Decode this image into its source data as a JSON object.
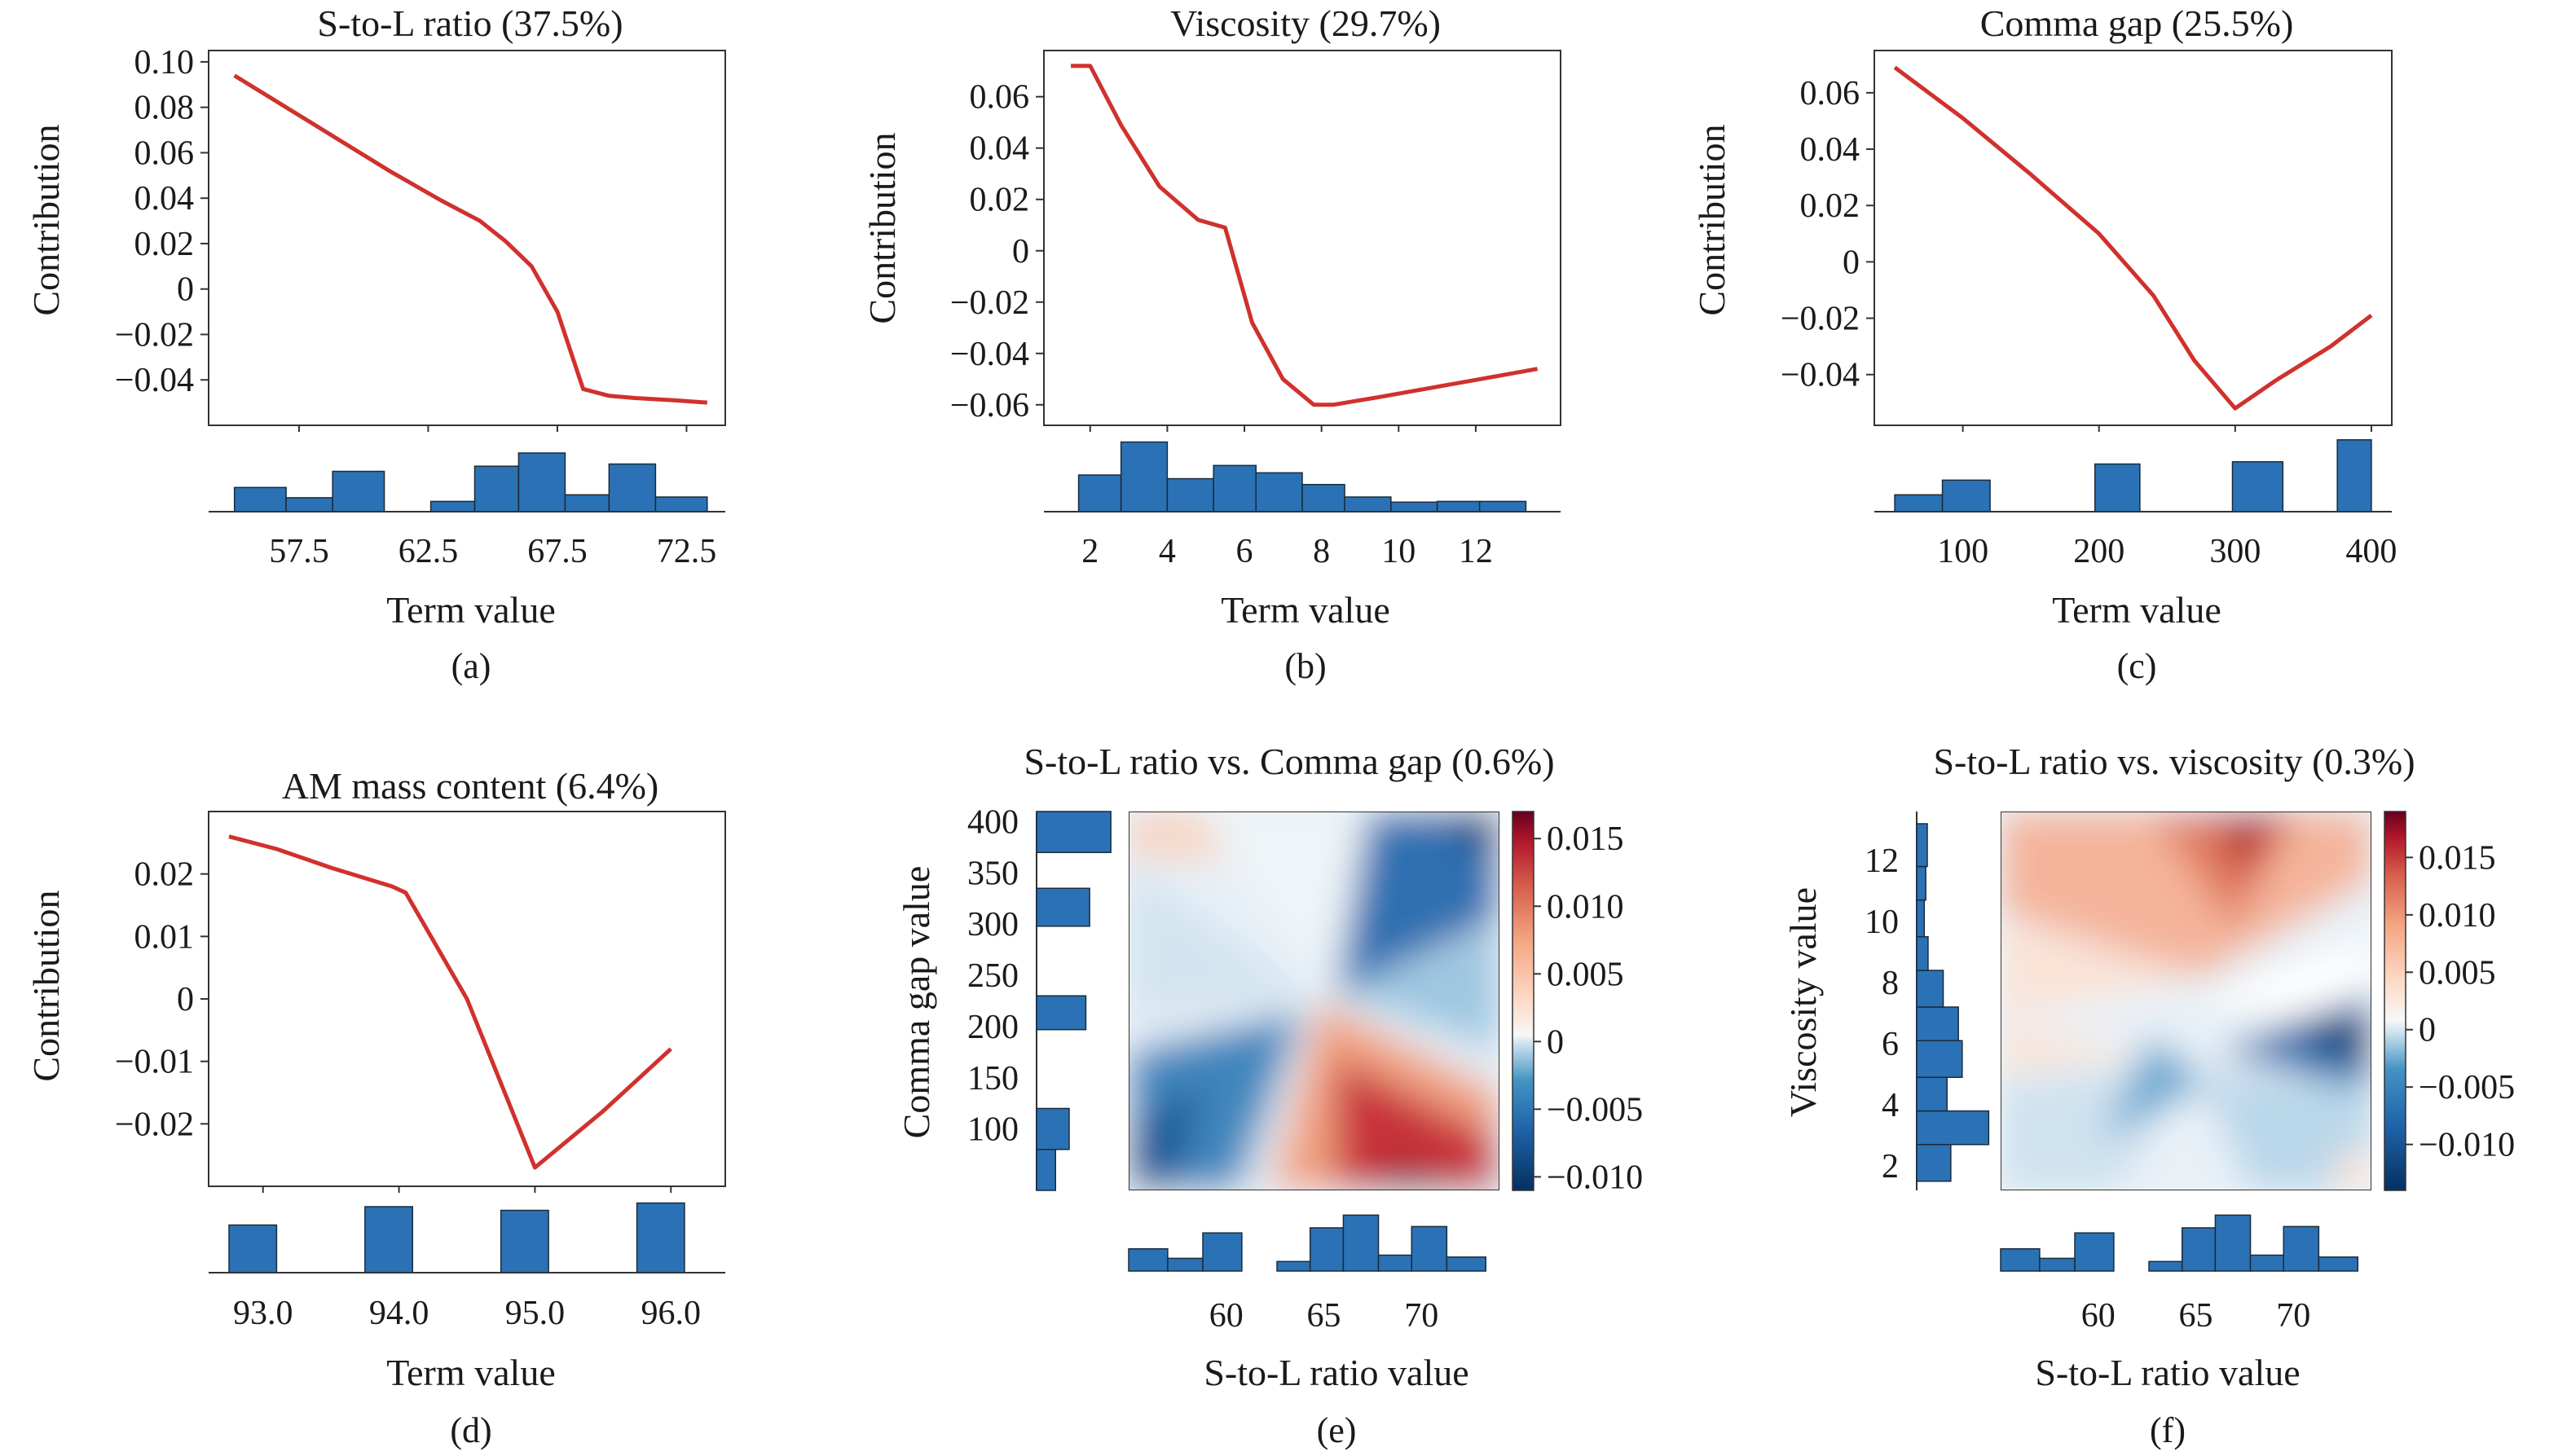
{
  "figure": {
    "panels": [
      {
        "id": "a",
        "caption": "(a)"
      },
      {
        "id": "b",
        "caption": "(b)"
      },
      {
        "id": "c",
        "caption": "(c)"
      },
      {
        "id": "d",
        "caption": "(d)"
      },
      {
        "id": "e",
        "caption": "(e)"
      },
      {
        "id": "f",
        "caption": "(f)"
      }
    ]
  },
  "colors": {
    "line": "#d0312d",
    "bar": "#2a72b5",
    "bar_edge": "#1b2a3a",
    "frame": "#333333"
  },
  "chart_data": [
    {
      "id": "a",
      "type": "line",
      "title": "S-to-L ratio (37.5%)",
      "xlabel": "Term value",
      "ylabel": "Contribution",
      "xlim": [
        54,
        74
      ],
      "ylim": [
        -0.06,
        0.105
      ],
      "xticks": [
        "57.5",
        "62.5",
        "67.5",
        "72.5"
      ],
      "xtick_values": [
        57.5,
        62.5,
        67.5,
        72.5
      ],
      "yticks": [
        "0.10",
        "0.08",
        "0.06",
        "0.04",
        "0.02",
        "0",
        "−0.02",
        "−0.04"
      ],
      "ytick_values": [
        0.1,
        0.08,
        0.06,
        0.04,
        0.02,
        0,
        -0.02,
        -0.04
      ],
      "x": [
        55,
        57,
        59,
        61,
        63,
        64.5,
        65.5,
        66.5,
        67.5,
        68.5,
        69.5,
        70.5,
        72,
        73.3
      ],
      "y": [
        0.094,
        0.08,
        0.066,
        0.052,
        0.039,
        0.03,
        0.021,
        0.01,
        -0.01,
        -0.044,
        -0.047,
        -0.048,
        -0.049,
        -0.05
      ],
      "hist": {
        "edges": [
          55,
          57,
          58.8,
          60.8,
          62.6,
          64.3,
          66,
          67.8,
          69.5,
          71.3,
          73.3
        ],
        "heights": [
          0.33,
          0.19,
          0.55,
          0,
          0.14,
          0.62,
          0.8,
          0.23,
          0.65,
          0.2
        ]
      }
    },
    {
      "id": "b",
      "type": "line",
      "title": "Viscosity (29.7%)",
      "xlabel": "Term value",
      "ylabel": "Contribution",
      "xlim": [
        0.8,
        14.2
      ],
      "ylim": [
        -0.068,
        0.078
      ],
      "xticks": [
        "2",
        "4",
        "6",
        "8",
        "10",
        "12"
      ],
      "xtick_values": [
        2,
        4,
        6,
        8,
        10,
        12
      ],
      "yticks": [
        "0.06",
        "0.04",
        "0.02",
        "0",
        "−0.02",
        "−0.04",
        "−0.06"
      ],
      "ytick_values": [
        0.06,
        0.04,
        0.02,
        0,
        -0.02,
        -0.04,
        -0.06
      ],
      "x": [
        1.5,
        2.0,
        2.8,
        3.8,
        4.8,
        5.5,
        6.2,
        7.0,
        7.8,
        8.3,
        9.5,
        11,
        12.5,
        13.6
      ],
      "y": [
        0.072,
        0.072,
        0.049,
        0.025,
        0.012,
        0.009,
        -0.028,
        -0.05,
        -0.06,
        -0.06,
        -0.057,
        -0.053,
        -0.049,
        -0.046
      ],
      "hist": {
        "edges": [
          1.7,
          2.8,
          4,
          5.2,
          6.3,
          7.5,
          8.6,
          9.8,
          11,
          12.1,
          13.3
        ],
        "heights": [
          0.5,
          0.95,
          0.45,
          0.63,
          0.53,
          0.37,
          0.2,
          0.13,
          0.14,
          0.14
        ]
      }
    },
    {
      "id": "c",
      "type": "line",
      "title": "Comma gap (25.5%)",
      "xlabel": "Term value",
      "ylabel": "Contribution",
      "xlim": [
        35,
        415
      ],
      "ylim": [
        -0.058,
        0.075
      ],
      "xticks": [
        "100",
        "200",
        "300",
        "400"
      ],
      "xtick_values": [
        100,
        200,
        300,
        400
      ],
      "yticks": [
        "0.06",
        "0.04",
        "0.02",
        "0",
        "−0.02",
        "−0.04"
      ],
      "ytick_values": [
        0.06,
        0.04,
        0.02,
        0,
        -0.02,
        -0.04
      ],
      "x": [
        50,
        100,
        150,
        200,
        240,
        270,
        300,
        330,
        370,
        400
      ],
      "y": [
        0.069,
        0.051,
        0.031,
        0.01,
        -0.012,
        -0.035,
        -0.052,
        -0.042,
        -0.03,
        -0.019
      ],
      "hist": {
        "edges": [
          50,
          85,
          120,
          160,
          197,
          230,
          260,
          298,
          335,
          375,
          400
        ],
        "heights": [
          0.23,
          0.43,
          0,
          0,
          0.65,
          0,
          0,
          0.68,
          0,
          0.98
        ]
      }
    },
    {
      "id": "d",
      "type": "line",
      "title": "AM mass content (6.4%)",
      "xlabel": "Term value",
      "ylabel": "Contribution",
      "xlim": [
        92.6,
        96.4
      ],
      "ylim": [
        -0.03,
        0.03
      ],
      "xticks": [
        "93.0",
        "94.0",
        "95.0",
        "96.0"
      ],
      "xtick_values": [
        93.0,
        94.0,
        95.0,
        96.0
      ],
      "yticks": [
        "0.02",
        "0.01",
        "0",
        "−0.01",
        "−0.02"
      ],
      "ytick_values": [
        0.02,
        0.01,
        0,
        -0.01,
        -0.02
      ],
      "x": [
        92.75,
        93.1,
        93.5,
        93.95,
        94.05,
        94.5,
        95.0,
        95.5,
        96.0
      ],
      "y": [
        0.026,
        0.024,
        0.021,
        0.018,
        0.017,
        0.0,
        -0.027,
        -0.018,
        -0.008
      ],
      "hist": {
        "edges": [
          92.75,
          93.1,
          93.4,
          93.75,
          94.1,
          94.4,
          94.75,
          95.1,
          95.4,
          95.75,
          96.1
        ],
        "heights": [
          0.65,
          0,
          0,
          0.9,
          0,
          0,
          0.85,
          0,
          0,
          0.95
        ]
      }
    },
    {
      "id": "e",
      "type": "heatmap",
      "title": "S-to-L ratio vs. Comma gap (0.6%)",
      "xlabel": "S-to-L ratio value",
      "ylabel": "Comma gap value",
      "xlim": [
        55,
        74
      ],
      "ylim": [
        40,
        410
      ],
      "xticks": [
        "60",
        "65",
        "70"
      ],
      "xtick_values": [
        60,
        65,
        70
      ],
      "yticks": [
        "400",
        "350",
        "300",
        "250",
        "200",
        "150",
        "100"
      ],
      "ytick_values": [
        400,
        350,
        300,
        250,
        200,
        150,
        100
      ],
      "colorbar": {
        "min": -0.011,
        "max": 0.017,
        "ticks": [
          "0.015",
          "0.010",
          "0.005",
          "0",
          "−0.005",
          "−0.010"
        ],
        "tick_values": [
          0.015,
          0.01,
          0.005,
          0,
          -0.005,
          -0.01
        ]
      },
      "xhist": {
        "edges": [
          55,
          57,
          58.8,
          60.8,
          62.6,
          64.3,
          66,
          67.8,
          69.5,
          71.3,
          73.3
        ],
        "heights": [
          0.35,
          0.2,
          0.6,
          0,
          0.15,
          0.68,
          0.88,
          0.25,
          0.7,
          0.22
        ]
      },
      "yhist": {
        "edges": [
          40,
          80,
          120,
          160,
          197,
          230,
          260,
          298,
          335,
          370,
          410
        ],
        "heights": [
          0.25,
          0.43,
          0,
          0,
          0.65,
          0,
          0,
          0.7,
          0,
          0.98
        ]
      }
    },
    {
      "id": "f",
      "type": "heatmap",
      "title": "S-to-L ratio vs. viscosity (0.3%)",
      "xlabel": "S-to-L ratio value",
      "ylabel": "Viscosity value",
      "xlim": [
        55,
        74
      ],
      "ylim": [
        1.2,
        13.6
      ],
      "xticks": [
        "60",
        "65",
        "70"
      ],
      "xtick_values": [
        60,
        65,
        70
      ],
      "yticks": [
        "12",
        "10",
        "8",
        "6",
        "4",
        "2"
      ],
      "ytick_values": [
        12,
        10,
        8,
        6,
        4,
        2
      ],
      "colorbar": {
        "min": -0.014,
        "max": 0.019,
        "ticks": [
          "0.015",
          "0.010",
          "0.005",
          "0",
          "−0.005",
          "−0.010"
        ],
        "tick_values": [
          0.015,
          0.01,
          0.005,
          0,
          -0.005,
          -0.01
        ]
      },
      "xhist": {
        "edges": [
          55,
          57,
          58.8,
          60.8,
          62.6,
          64.3,
          66,
          67.8,
          69.5,
          71.3,
          73.3
        ],
        "heights": [
          0.35,
          0.2,
          0.6,
          0,
          0.15,
          0.68,
          0.88,
          0.25,
          0.7,
          0.22
        ]
      },
      "yhist": {
        "edges": [
          1.5,
          2.7,
          3.8,
          4.9,
          6.1,
          7.2,
          8.4,
          9.5,
          10.7,
          11.8,
          13.2
        ],
        "heights": [
          0.45,
          0.95,
          0.4,
          0.6,
          0.55,
          0.35,
          0.15,
          0.1,
          0.12,
          0.14
        ]
      }
    }
  ]
}
